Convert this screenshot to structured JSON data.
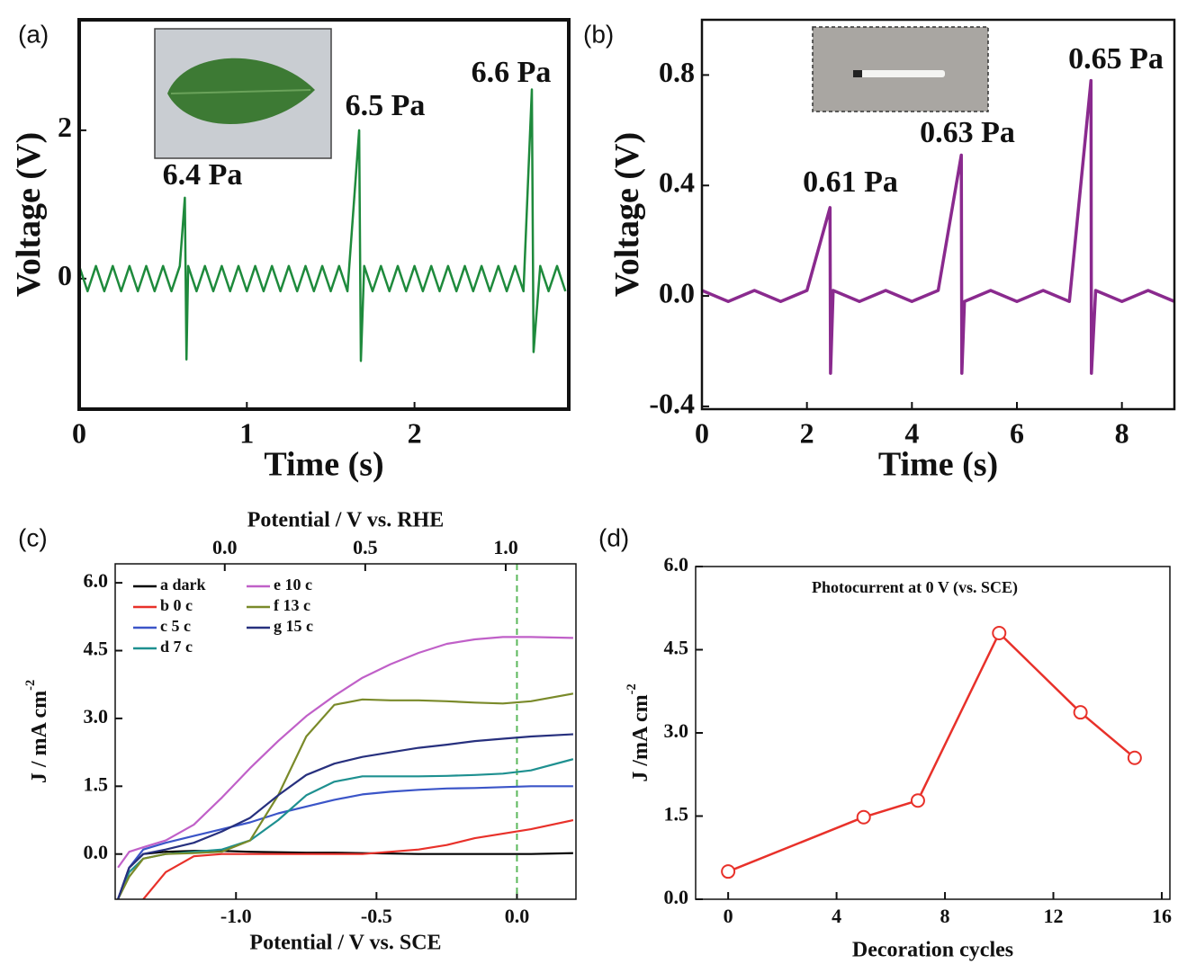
{
  "chart_data": [
    {
      "type": "line",
      "panel": "(a)",
      "xlabel": "Time (s)",
      "ylabel": "Voltage (V)",
      "xlim": [
        0,
        2.92
      ],
      "xticks": [
        0,
        1,
        2
      ],
      "ylim": [
        -1.76,
        3.49
      ],
      "yticks": [
        0,
        2
      ],
      "x": [
        0,
        0.05,
        0.1,
        0.15,
        0.2,
        0.25,
        0.3,
        0.35,
        0.4,
        0.45,
        0.5,
        0.55,
        0.6,
        0.63,
        0.64,
        0.65,
        0.7,
        0.75,
        0.8,
        0.85,
        0.9,
        0.95,
        1.0,
        1.05,
        1.1,
        1.15,
        1.2,
        1.25,
        1.3,
        1.35,
        1.4,
        1.45,
        1.5,
        1.55,
        1.6,
        1.67,
        1.68,
        1.7,
        1.75,
        1.8,
        1.85,
        1.9,
        1.95,
        2.0,
        2.05,
        2.1,
        2.15,
        2.2,
        2.25,
        2.3,
        2.35,
        2.4,
        2.45,
        2.5,
        2.55,
        2.6,
        2.65,
        2.7,
        2.71,
        2.75,
        2.8,
        2.85,
        2.9
      ],
      "series": [
        {
          "color": "#1e8a3c",
          "values": [
            0.17,
            -0.17,
            0.17,
            -0.17,
            0.17,
            -0.17,
            0.17,
            -0.17,
            0.17,
            -0.17,
            0.17,
            -0.17,
            0.17,
            1.09,
            -1.09,
            0.17,
            -0.17,
            0.17,
            -0.17,
            0.17,
            -0.17,
            0.17,
            -0.17,
            0.17,
            -0.17,
            0.17,
            -0.17,
            0.17,
            -0.17,
            0.17,
            -0.17,
            0.17,
            -0.17,
            0.17,
            -0.17,
            2.0,
            -1.11,
            0.17,
            -0.17,
            0.17,
            -0.17,
            0.17,
            -0.17,
            0.17,
            -0.17,
            0.17,
            -0.17,
            0.17,
            -0.17,
            0.17,
            -0.17,
            0.17,
            -0.17,
            0.17,
            -0.17,
            0.17,
            -0.17,
            2.55,
            -0.99,
            0.17,
            -0.17,
            0.17,
            -0.17
          ]
        }
      ],
      "annotations": [
        "6.4 Pa",
        "6.5 Pa",
        "6.6 Pa"
      ]
    },
    {
      "type": "line",
      "panel": "(b)",
      "xlabel": "Time (s)",
      "ylabel": "Voltage (V)",
      "xlim": [
        0,
        9
      ],
      "xticks": [
        0,
        2,
        4,
        6,
        8
      ],
      "ylim": [
        -0.41,
        1.0
      ],
      "yticks": [
        -0.4,
        {
          "value": 0,
          "label": "0.0"
        },
        0.4,
        0.8
      ],
      "x": [
        0,
        0.5,
        1,
        1.5,
        2,
        2.44,
        2.45,
        2.5,
        3,
        3.5,
        4,
        4.5,
        4.94,
        4.95,
        5,
        5.5,
        6,
        6.5,
        7,
        7.41,
        7.42,
        7.5,
        8,
        8.5,
        9
      ],
      "series": [
        {
          "color": "#8a2a8e",
          "values": [
            0.02,
            -0.02,
            0.02,
            -0.02,
            0.02,
            0.32,
            -0.28,
            0.02,
            -0.02,
            0.02,
            -0.02,
            0.02,
            0.51,
            -0.28,
            -0.02,
            0.02,
            -0.02,
            0.02,
            -0.02,
            0.78,
            -0.28,
            0.02,
            -0.02,
            0.02,
            -0.02
          ]
        }
      ],
      "annotations": [
        "0.61 Pa",
        "0.63 Pa",
        "0.65 Pa"
      ]
    },
    {
      "type": "line",
      "panel": "(c)",
      "xlabel": "Potential / V vs. SCE",
      "x2label": "Potential / V vs. RHE",
      "ylabel": "J / mA cm",
      "ylabel_sup": "-2",
      "xlim": [
        -1.43,
        0.21
      ],
      "xticks": [
        {
          "value": -1.0,
          "label": "-1.0"
        },
        -0.5,
        {
          "value": 0,
          "label": "0.0"
        }
      ],
      "x2lim": [
        -0.39,
        1.25
      ],
      "x2ticks": [
        {
          "value": 0,
          "label": "0.0"
        },
        0.5,
        {
          "value": 1.0,
          "label": "1.0"
        }
      ],
      "ylim": [
        -1.0,
        6.42
      ],
      "yticks": [
        {
          "value": 0,
          "label": "0.0"
        },
        1.5,
        {
          "value": 3.0,
          "label": "3.0"
        },
        4.5,
        {
          "value": 6.0,
          "label": "6.0"
        }
      ],
      "vline": 0,
      "vline_color": "#5cb85c",
      "x": [
        -1.42,
        -1.38,
        -1.33,
        -1.25,
        -1.15,
        -1.05,
        -0.95,
        -0.85,
        -0.75,
        -0.65,
        -0.55,
        -0.45,
        -0.35,
        -0.25,
        -0.15,
        -0.05,
        0.05,
        0.2
      ],
      "series": [
        {
          "name": "a dark",
          "color": "#000000",
          "values": [
            -1.0,
            -0.3,
            0.0,
            0.05,
            0.07,
            0.07,
            0.05,
            0.04,
            0.03,
            0.03,
            0.02,
            0.01,
            0.0,
            0.0,
            0.0,
            0.0,
            0.0,
            0.02
          ]
        },
        {
          "name": "b 0 c",
          "color": "#e8312a",
          "values": [
            null,
            null,
            -1.0,
            -0.4,
            -0.05,
            0.0,
            0.0,
            0.0,
            0.0,
            0.0,
            0.0,
            0.05,
            0.1,
            0.2,
            0.35,
            0.45,
            0.55,
            0.75
          ]
        },
        {
          "name": "c 5 c",
          "color": "#3b55c8",
          "values": [
            -1.0,
            -0.3,
            0.1,
            0.25,
            0.4,
            0.55,
            0.7,
            0.9,
            1.05,
            1.2,
            1.32,
            1.38,
            1.42,
            1.45,
            1.46,
            1.48,
            1.5,
            1.5
          ]
        },
        {
          "name": "d 7 c",
          "color": "#1e9090",
          "values": [
            -1.0,
            -0.4,
            -0.1,
            0.0,
            0.05,
            0.1,
            0.3,
            0.75,
            1.3,
            1.6,
            1.72,
            1.72,
            1.72,
            1.73,
            1.75,
            1.78,
            1.85,
            2.1
          ]
        },
        {
          "name": "e 10 c",
          "color": "#c060c8",
          "values": [
            -0.3,
            0.05,
            0.15,
            0.3,
            0.65,
            1.25,
            1.9,
            2.5,
            3.05,
            3.5,
            3.9,
            4.2,
            4.45,
            4.65,
            4.75,
            4.8,
            4.8,
            4.78
          ]
        },
        {
          "name": "f 13 c",
          "color": "#7a8a2a",
          "values": [
            -1.0,
            -0.5,
            -0.1,
            0.0,
            0.02,
            0.05,
            0.3,
            1.3,
            2.6,
            3.3,
            3.42,
            3.4,
            3.4,
            3.38,
            3.35,
            3.33,
            3.38,
            3.55
          ]
        },
        {
          "name": "g 15 c",
          "color": "#27307e",
          "values": [
            -1.0,
            -0.3,
            0.0,
            0.1,
            0.25,
            0.5,
            0.8,
            1.3,
            1.75,
            2.0,
            2.15,
            2.25,
            2.35,
            2.42,
            2.5,
            2.55,
            2.6,
            2.65
          ]
        }
      ]
    },
    {
      "type": "line",
      "panel": "(d)",
      "title": "Photocurrent at 0 V (vs. SCE)",
      "xlabel": "Decoration cycles",
      "ylabel": "J /mA cm",
      "ylabel_sup": "-2",
      "marker": "circle",
      "xlim": [
        -1.2,
        16.3
      ],
      "xticks": [
        0,
        4,
        8,
        12,
        16
      ],
      "ylim": [
        0,
        6.0
      ],
      "yticks": [
        {
          "value": 0,
          "label": "0.0"
        },
        1.5,
        {
          "value": 3.0,
          "label": "3.0"
        },
        4.5,
        {
          "value": 6.0,
          "label": "6.0"
        }
      ],
      "x": [
        0,
        5,
        7,
        10,
        13,
        15
      ],
      "series": [
        {
          "color": "#e8312a",
          "values": [
            0.5,
            1.48,
            1.78,
            4.8,
            3.37,
            2.55
          ]
        }
      ]
    }
  ]
}
